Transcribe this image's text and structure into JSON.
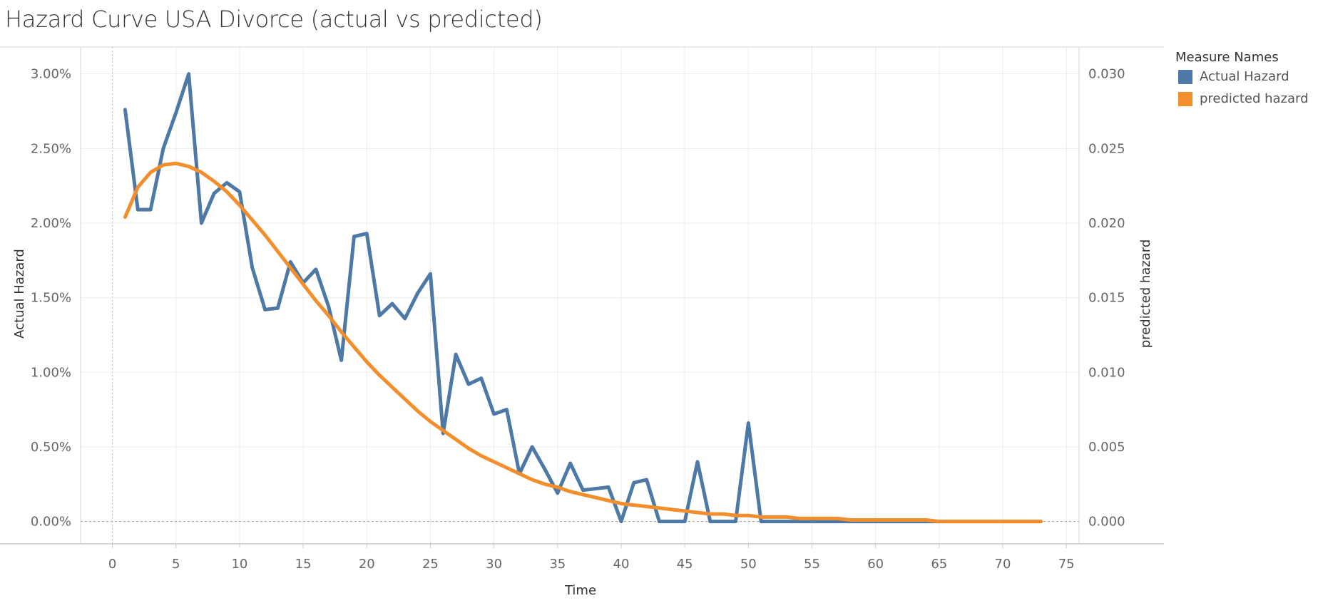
{
  "title": "Hazard Curve USA Divorce (actual vs predicted)",
  "legend": {
    "title": "Measure Names",
    "items": [
      {
        "label": "Actual Hazard",
        "color": "#4e79a7"
      },
      {
        "label": "predicted hazard",
        "color": "#f28e2b"
      }
    ]
  },
  "chart_data": {
    "type": "line",
    "title": "Hazard Curve USA Divorce (actual vs predicted)",
    "xlabel": "Time",
    "ylabel_left": "Actual Hazard",
    "ylabel_right": "predicted hazard",
    "xlim": [
      -2.5,
      76
    ],
    "ylim_left": [
      -0.0015,
      0.0318
    ],
    "ylim_right": [
      -0.0015,
      0.0318
    ],
    "x_ticks": [
      0,
      5,
      10,
      15,
      20,
      25,
      30,
      35,
      40,
      45,
      50,
      55,
      60,
      65,
      70,
      75
    ],
    "y_ticks_left": [
      {
        "value": 0.0,
        "label": "0.00%"
      },
      {
        "value": 0.005,
        "label": "0.50%"
      },
      {
        "value": 0.01,
        "label": "1.00%"
      },
      {
        "value": 0.015,
        "label": "1.50%"
      },
      {
        "value": 0.02,
        "label": "2.00%"
      },
      {
        "value": 0.025,
        "label": "2.50%"
      },
      {
        "value": 0.03,
        "label": "3.00%"
      }
    ],
    "y_ticks_right": [
      {
        "value": 0.0,
        "label": "0.000"
      },
      {
        "value": 0.005,
        "label": "0.005"
      },
      {
        "value": 0.01,
        "label": "0.010"
      },
      {
        "value": 0.015,
        "label": "0.015"
      },
      {
        "value": 0.02,
        "label": "0.020"
      },
      {
        "value": 0.025,
        "label": "0.025"
      },
      {
        "value": 0.03,
        "label": "0.030"
      }
    ],
    "grid": true,
    "legend_position": "right",
    "series": [
      {
        "name": "Actual Hazard",
        "color": "#4e79a7",
        "axis": "left",
        "x": [
          1,
          2,
          3,
          4,
          5,
          6,
          7,
          8,
          9,
          10,
          11,
          12,
          13,
          14,
          15,
          16,
          17,
          18,
          19,
          20,
          21,
          22,
          23,
          24,
          25,
          26,
          27,
          28,
          29,
          30,
          31,
          32,
          33,
          34,
          35,
          36,
          37,
          38,
          39,
          40,
          41,
          42,
          43,
          44,
          45,
          46,
          47,
          48,
          49,
          50,
          51,
          52,
          53,
          54,
          55,
          56,
          57,
          58,
          59,
          60,
          61,
          62,
          63,
          64,
          65,
          66,
          67,
          68,
          69,
          70,
          71,
          72,
          73
        ],
        "y": [
          0.0276,
          0.0209,
          0.0209,
          0.025,
          0.0274,
          0.03,
          0.02,
          0.022,
          0.0227,
          0.0221,
          0.017,
          0.0142,
          0.0143,
          0.0174,
          0.016,
          0.0169,
          0.0144,
          0.0108,
          0.0191,
          0.0193,
          0.0138,
          0.0146,
          0.0136,
          0.0153,
          0.0166,
          0.0059,
          0.0112,
          0.0092,
          0.0096,
          0.0072,
          0.0075,
          0.0032,
          0.005,
          0.0035,
          0.0019,
          0.0039,
          0.0021,
          0.0022,
          0.0023,
          0.0,
          0.0026,
          0.0028,
          0.0,
          0.0,
          0.0,
          0.004,
          0.0,
          0.0,
          0.0,
          0.0066,
          0.0,
          0.0,
          0.0,
          0.0,
          0.0,
          0.0,
          0.0,
          0.0,
          0.0,
          0.0,
          0.0,
          0.0,
          0.0,
          0.0,
          0.0,
          0.0,
          0.0,
          0.0,
          0.0,
          0.0,
          0.0,
          0.0,
          0.0
        ]
      },
      {
        "name": "predicted hazard",
        "color": "#f28e2b",
        "axis": "right",
        "x": [
          1,
          2,
          3,
          4,
          5,
          6,
          7,
          8,
          9,
          10,
          11,
          12,
          13,
          14,
          15,
          16,
          17,
          18,
          19,
          20,
          21,
          22,
          23,
          24,
          25,
          26,
          27,
          28,
          29,
          30,
          31,
          32,
          33,
          34,
          35,
          36,
          37,
          38,
          39,
          40,
          41,
          42,
          43,
          44,
          45,
          46,
          47,
          48,
          49,
          50,
          51,
          52,
          53,
          54,
          55,
          56,
          57,
          58,
          59,
          60,
          61,
          62,
          63,
          64,
          65,
          66,
          67,
          68,
          69,
          70,
          71,
          72,
          73
        ],
        "y": [
          0.0204,
          0.0224,
          0.0234,
          0.0239,
          0.024,
          0.0238,
          0.0234,
          0.0228,
          0.0221,
          0.0212,
          0.0202,
          0.0192,
          0.0181,
          0.017,
          0.0159,
          0.0148,
          0.0138,
          0.0127,
          0.0117,
          0.0107,
          0.0098,
          0.009,
          0.0082,
          0.0074,
          0.0067,
          0.0061,
          0.0055,
          0.0049,
          0.0044,
          0.004,
          0.0036,
          0.0032,
          0.0028,
          0.0025,
          0.0023,
          0.002,
          0.0018,
          0.0016,
          0.0014,
          0.0012,
          0.0011,
          0.001,
          0.0009,
          0.0008,
          0.0007,
          0.0006,
          0.0005,
          0.0005,
          0.0004,
          0.0004,
          0.0003,
          0.0003,
          0.0003,
          0.0002,
          0.0002,
          0.0002,
          0.0002,
          0.0001,
          0.0001,
          0.0001,
          0.0001,
          0.0001,
          0.0001,
          0.0001,
          0.0,
          0.0,
          0.0,
          0.0,
          0.0,
          0.0,
          0.0,
          0.0,
          0.0
        ]
      }
    ]
  }
}
